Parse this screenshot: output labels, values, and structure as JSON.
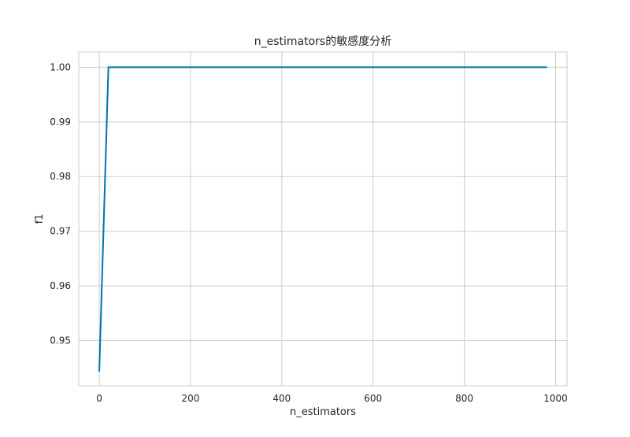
{
  "chart_data": {
    "type": "line",
    "title": "n_estimators的敏感度分析",
    "xlabel": "n_estimators",
    "ylabel": "f1",
    "xlim": [
      -45,
      1025
    ],
    "ylim": [
      0.9417,
      1.0028
    ],
    "xticks": [
      0,
      200,
      400,
      600,
      800,
      1000
    ],
    "xtick_labels": [
      "0",
      "200",
      "400",
      "600",
      "800",
      "1000"
    ],
    "yticks": [
      0.95,
      0.96,
      0.97,
      0.98,
      0.99,
      1.0
    ],
    "ytick_labels": [
      "0.95",
      "0.96",
      "0.97",
      "0.98",
      "0.99",
      "1.00"
    ],
    "grid": true,
    "series": [
      {
        "color": "#0072b2",
        "x": [
          0,
          20,
          40,
          60,
          80,
          100,
          120,
          140,
          160,
          180,
          200,
          220,
          240,
          260,
          280,
          300,
          320,
          340,
          360,
          380,
          400,
          420,
          440,
          460,
          480,
          500,
          520,
          540,
          560,
          580,
          600,
          620,
          640,
          660,
          680,
          700,
          720,
          740,
          760,
          780,
          800,
          820,
          840,
          860,
          880,
          900,
          920,
          940,
          960,
          980
        ],
        "y": [
          0.9444,
          1.0,
          1.0,
          1.0,
          1.0,
          1.0,
          1.0,
          1.0,
          1.0,
          1.0,
          1.0,
          1.0,
          1.0,
          1.0,
          1.0,
          1.0,
          1.0,
          1.0,
          1.0,
          1.0,
          1.0,
          1.0,
          1.0,
          1.0,
          1.0,
          1.0,
          1.0,
          1.0,
          1.0,
          1.0,
          1.0,
          1.0,
          1.0,
          1.0,
          1.0,
          1.0,
          1.0,
          1.0,
          1.0,
          1.0,
          1.0,
          1.0,
          1.0,
          1.0,
          1.0,
          1.0,
          1.0,
          1.0,
          1.0,
          1.0
        ]
      }
    ]
  }
}
